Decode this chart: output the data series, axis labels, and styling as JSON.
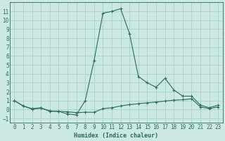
{
  "xlabel": "Humidex (Indice chaleur)",
  "background_color": "#cce8e4",
  "grid_color": "#aacfcb",
  "line_color": "#2a6b5e",
  "xlim": [
    -0.5,
    23.5
  ],
  "ylim": [
    -1.5,
    12.0
  ],
  "xticks": [
    0,
    1,
    2,
    3,
    4,
    5,
    6,
    7,
    8,
    9,
    10,
    11,
    12,
    13,
    14,
    15,
    16,
    17,
    18,
    19,
    20,
    21,
    22,
    23
  ],
  "yticks": [
    -1,
    0,
    1,
    2,
    3,
    4,
    5,
    6,
    7,
    8,
    9,
    10,
    11
  ],
  "line1_x": [
    0,
    1,
    2,
    3,
    4,
    5,
    6,
    7,
    8,
    9,
    10,
    11,
    12,
    13,
    14,
    15,
    16,
    17,
    18,
    19,
    20,
    21,
    22,
    23
  ],
  "line1_y": [
    1.0,
    0.4,
    0.1,
    0.2,
    -0.2,
    -0.2,
    -0.5,
    -0.6,
    1.0,
    5.5,
    10.8,
    11.0,
    11.3,
    8.5,
    3.7,
    3.0,
    2.5,
    3.5,
    2.2,
    1.5,
    1.5,
    0.5,
    0.2,
    0.5
  ],
  "line2_x": [
    0,
    1,
    2,
    3,
    4,
    5,
    6,
    7,
    8,
    9,
    10,
    11,
    12,
    13,
    14,
    15,
    16,
    17,
    18,
    19,
    20,
    21,
    22,
    23
  ],
  "line2_y": [
    1.0,
    0.4,
    0.05,
    0.15,
    -0.15,
    -0.2,
    -0.25,
    -0.35,
    -0.3,
    -0.3,
    0.1,
    0.2,
    0.4,
    0.55,
    0.65,
    0.75,
    0.85,
    0.95,
    1.05,
    1.1,
    1.2,
    0.3,
    0.1,
    0.3
  ]
}
